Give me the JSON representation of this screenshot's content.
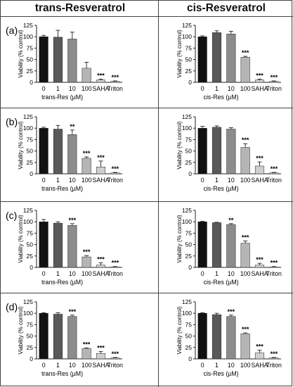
{
  "headers": {
    "left": "trans-Resveratrol",
    "right": "cis-Resveratrol"
  },
  "row_labels": [
    "(a)",
    "(b)",
    "(c)",
    "(d)"
  ],
  "colors": {
    "bar_dark": "#111111",
    "bar_mid": "#595959",
    "bar_grey": "#8c8c8c",
    "bar_light": "#b5b5b5",
    "bar_lighter": "#cfcfcf",
    "bar_pale": "#dddddd",
    "axis": "#222222"
  },
  "chart_data": [
    {
      "type": "bar",
      "row": "(a)",
      "column": "trans-Resveratrol",
      "ylabel": "Viability (% control)",
      "xlabel": "trans-Res (µM)",
      "categories": [
        "0",
        "1",
        "10",
        "100",
        "SAHA",
        "Triton"
      ],
      "values": [
        100,
        99,
        95,
        31,
        5,
        2
      ],
      "errors": [
        3,
        15,
        15,
        13,
        2,
        1
      ],
      "significance": [
        "",
        "",
        "",
        "",
        "***",
        "***"
      ],
      "yticks": [
        0,
        25,
        50,
        75,
        100,
        125
      ],
      "ylim": [
        0,
        125
      ]
    },
    {
      "type": "bar",
      "row": "(a)",
      "column": "cis-Resveratrol",
      "ylabel": "Viability (% control)",
      "xlabel": "cis-Res (µM)",
      "categories": [
        "0",
        "1",
        "10",
        "100",
        "SAHA",
        "Triton"
      ],
      "values": [
        100,
        109,
        106,
        55,
        5,
        2
      ],
      "errors": [
        2,
        4,
        6,
        2,
        2,
        1
      ],
      "significance": [
        "",
        "",
        "",
        "***",
        "***",
        "***"
      ],
      "yticks": [
        0,
        25,
        50,
        75,
        100,
        125
      ],
      "ylim": [
        0,
        125
      ]
    },
    {
      "type": "bar",
      "row": "(b)",
      "column": "trans-Resveratrol",
      "ylabel": "Viability (% control)",
      "xlabel": "trans-Res (µM)",
      "categories": [
        "0",
        "1",
        "10",
        "100",
        "SAHA",
        "Triton"
      ],
      "values": [
        100,
        98,
        86,
        34,
        15,
        2
      ],
      "errors": [
        2,
        8,
        10,
        3,
        13,
        1
      ],
      "significance": [
        "",
        "",
        "**",
        "***",
        "***",
        "***"
      ],
      "yticks": [
        0,
        25,
        50,
        75,
        100,
        125
      ],
      "ylim": [
        0,
        125
      ]
    },
    {
      "type": "bar",
      "row": "(b)",
      "column": "cis-Resveratrol",
      "ylabel": "Viability (% control)",
      "xlabel": "cis-Res (µM)",
      "categories": [
        "0",
        "1",
        "10",
        "100",
        "SAHA",
        "Triton"
      ],
      "values": [
        100,
        102,
        98,
        58,
        17,
        2
      ],
      "errors": [
        4,
        3,
        3,
        8,
        9,
        1
      ],
      "significance": [
        "",
        "",
        "",
        "***",
        "***",
        "***"
      ],
      "yticks": [
        0,
        25,
        50,
        75,
        100,
        125
      ],
      "ylim": [
        0,
        125
      ]
    },
    {
      "type": "bar",
      "row": "(c)",
      "column": "trans-Resveratrol",
      "ylabel": "Viability (% control)",
      "xlabel": "trans-Res (µM)",
      "categories": [
        "0",
        "1",
        "10",
        "100",
        "SAHA",
        "Triton"
      ],
      "values": [
        100,
        97,
        92,
        23,
        5,
        1
      ],
      "errors": [
        5,
        3,
        4,
        3,
        5,
        1
      ],
      "significance": [
        "",
        "",
        "***",
        "***",
        "***",
        "***"
      ],
      "yticks": [
        0,
        25,
        50,
        75,
        100,
        125
      ],
      "ylim": [
        0,
        125
      ]
    },
    {
      "type": "bar",
      "row": "(c)",
      "column": "cis-Resveratrol",
      "ylabel": "Viability (% control)",
      "xlabel": "cis-Res (µM)",
      "categories": [
        "0",
        "1",
        "10",
        "100",
        "SAHA",
        "Triton"
      ],
      "values": [
        100,
        98,
        94,
        53,
        5,
        1
      ],
      "errors": [
        1,
        1,
        2,
        5,
        4,
        1
      ],
      "significance": [
        "",
        "",
        "**",
        "***",
        "***",
        "***"
      ],
      "yticks": [
        0,
        25,
        50,
        75,
        100,
        125
      ],
      "ylim": [
        0,
        125
      ]
    },
    {
      "type": "bar",
      "row": "(d)",
      "column": "trans-Resveratrol",
      "ylabel": "Viability (% control)",
      "xlabel": "trans-Res (µM)",
      "categories": [
        "0",
        "1",
        "10",
        "100",
        "SAHA",
        "Triton"
      ],
      "values": [
        100,
        98,
        93,
        23,
        12,
        2
      ],
      "errors": [
        1,
        3,
        3,
        1,
        4,
        1
      ],
      "significance": [
        "",
        "",
        "***",
        "***",
        "***",
        "***"
      ],
      "yticks": [
        0,
        25,
        50,
        75,
        100,
        125
      ],
      "ylim": [
        0,
        125
      ]
    },
    {
      "type": "bar",
      "row": "(d)",
      "column": "cis-Resveratrol",
      "ylabel": "Viability (% control)",
      "xlabel": "cis-Res (µM)",
      "categories": [
        "0",
        "1",
        "10",
        "100",
        "SAHA",
        "Triton"
      ],
      "values": [
        100,
        97,
        93,
        55,
        13,
        2
      ],
      "errors": [
        1,
        3,
        3,
        2,
        6,
        1
      ],
      "significance": [
        "",
        "",
        "***",
        "***",
        "***",
        "***"
      ],
      "yticks": [
        0,
        25,
        50,
        75,
        100,
        125
      ],
      "ylim": [
        0,
        125
      ]
    }
  ]
}
